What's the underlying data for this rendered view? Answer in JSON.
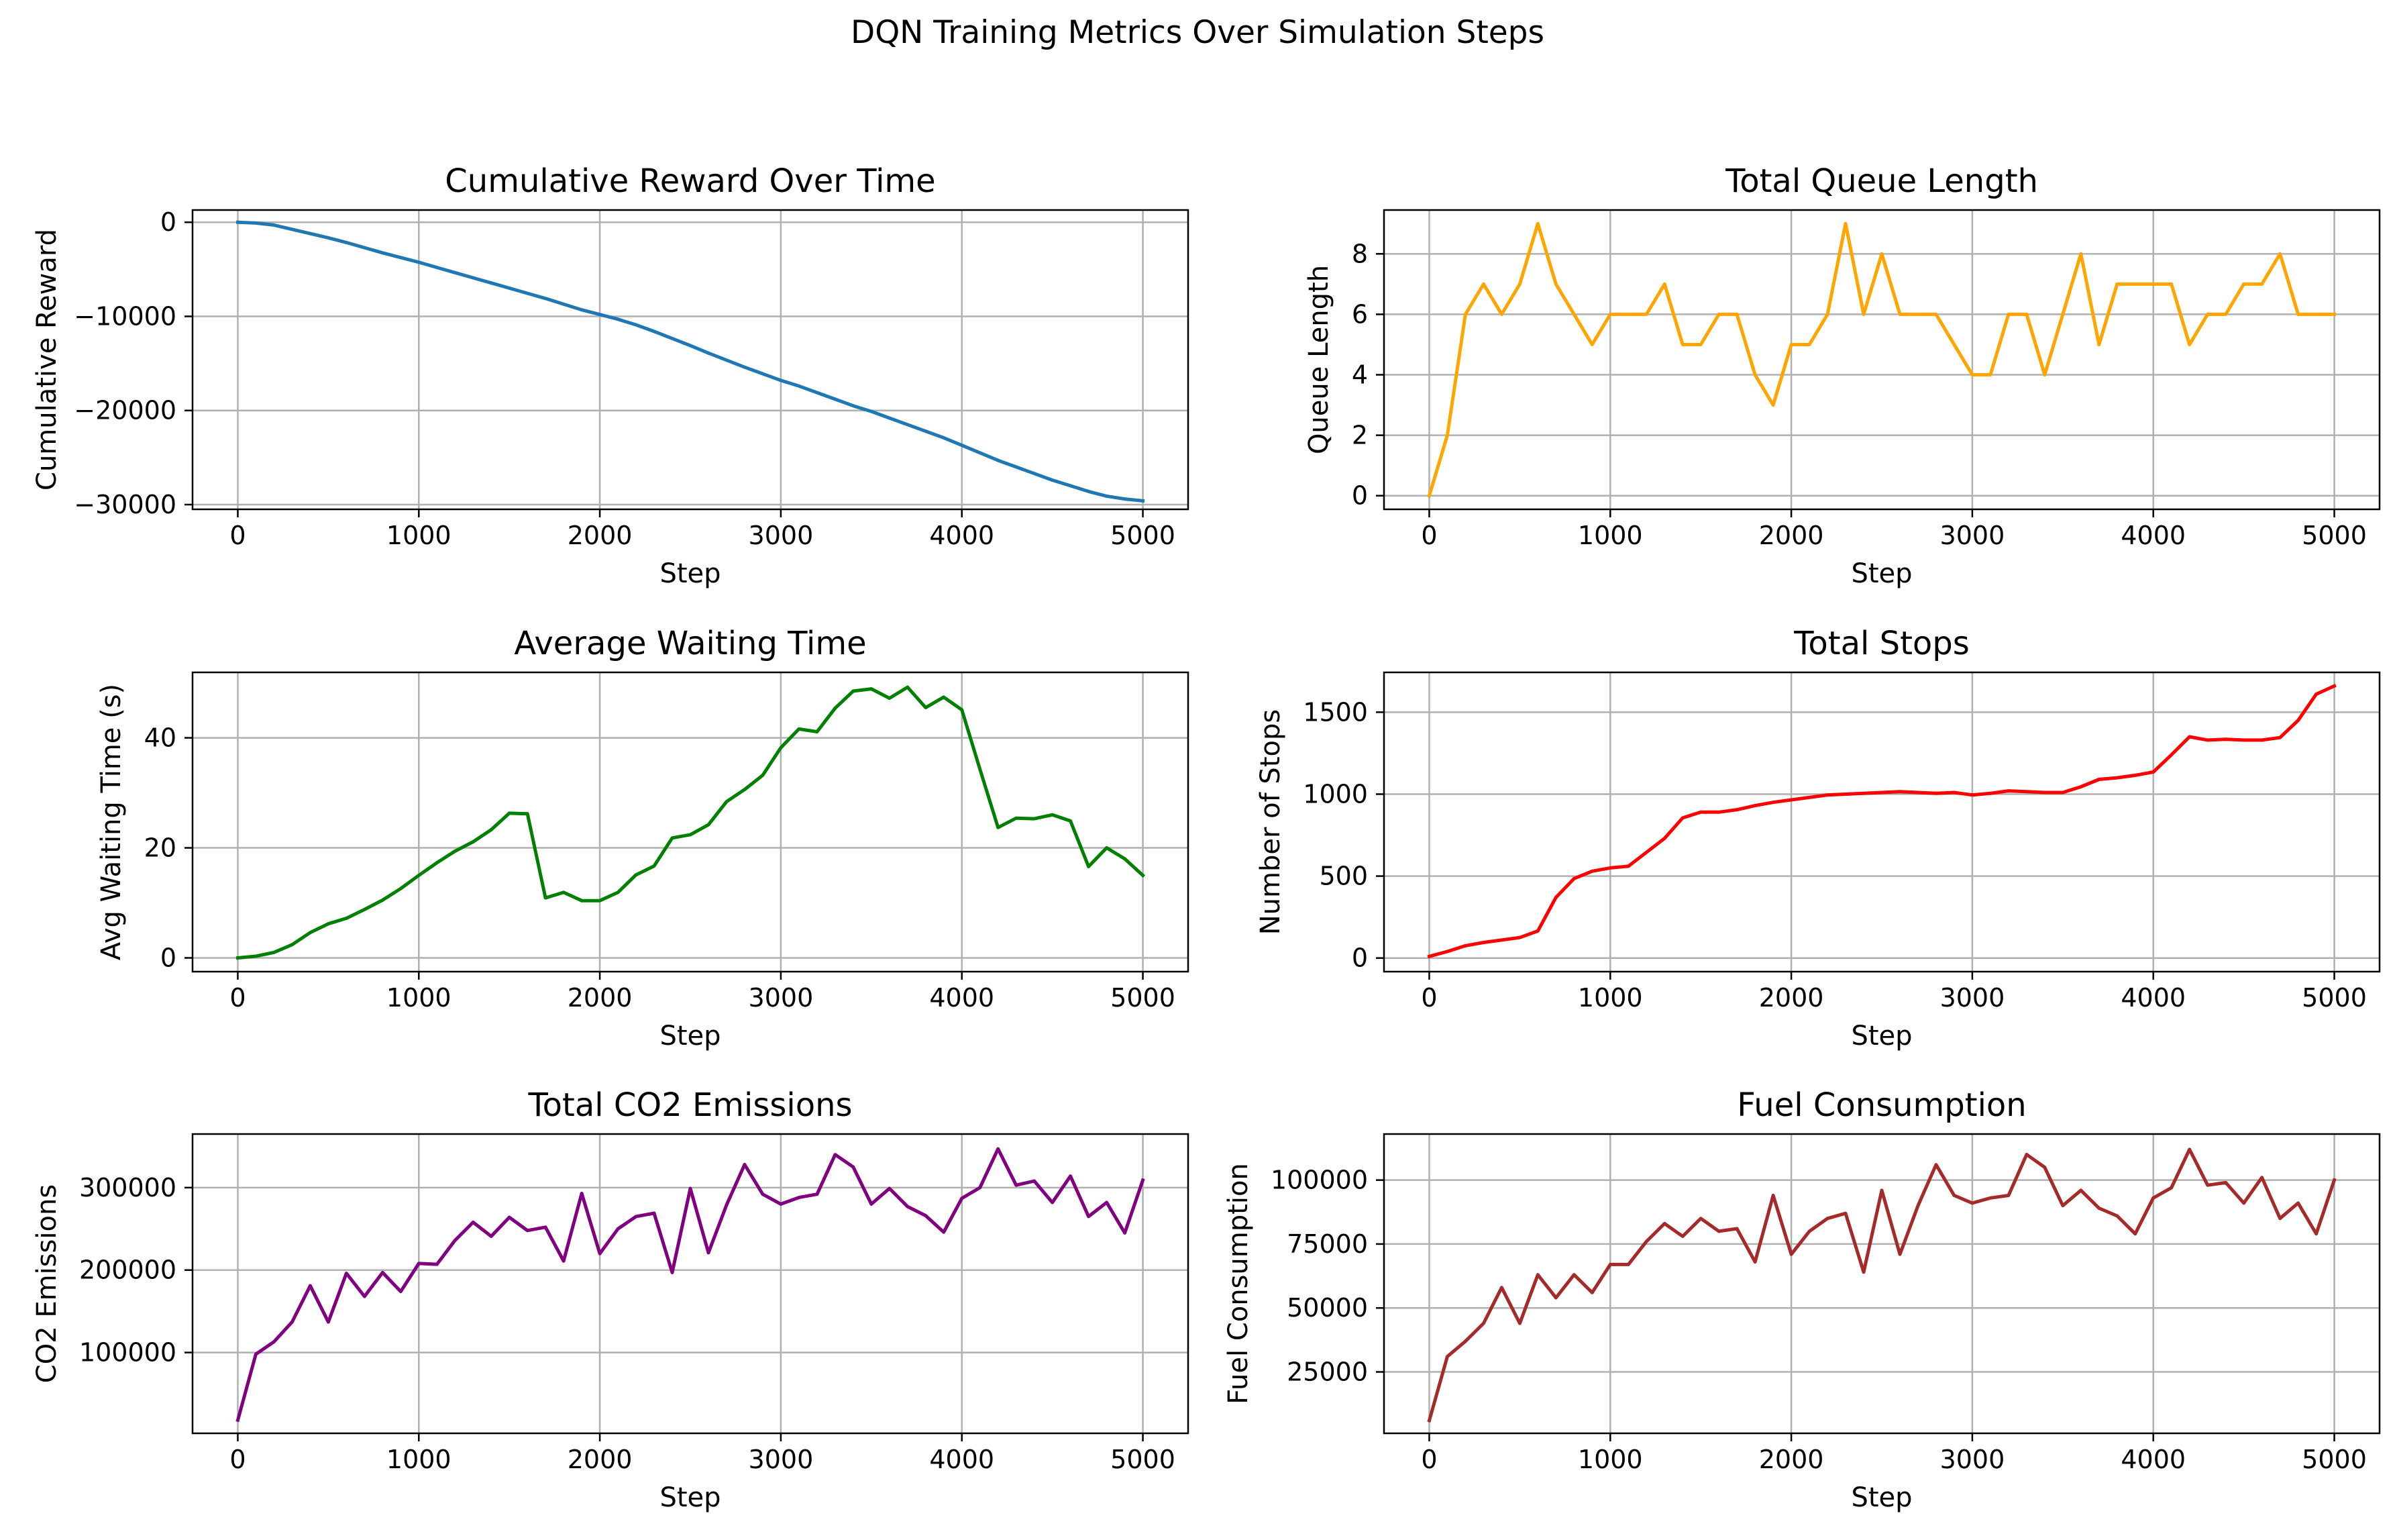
{
  "figure": {
    "suptitle": "DQN Training Metrics Over Simulation Steps"
  },
  "chart_data": [
    {
      "type": "line",
      "title": "Cumulative Reward Over Time",
      "xlabel": "Step",
      "ylabel": "Cumulative Reward",
      "color": "#1f77b4",
      "grid": true,
      "xlim": [
        -250,
        5250
      ],
      "ylim": [
        -30500,
        1300
      ],
      "xticks": [
        0,
        1000,
        2000,
        3000,
        4000,
        5000
      ],
      "yticks": [
        0,
        -10000,
        -20000,
        -30000
      ],
      "x": [
        0,
        100,
        200,
        300,
        400,
        500,
        600,
        700,
        800,
        900,
        1000,
        1100,
        1200,
        1300,
        1400,
        1500,
        1600,
        1700,
        1800,
        1900,
        2000,
        2100,
        2200,
        2300,
        2400,
        2500,
        2600,
        2700,
        2800,
        2900,
        3000,
        3100,
        3200,
        3300,
        3400,
        3500,
        3600,
        3700,
        3800,
        3900,
        4000,
        4100,
        4200,
        4300,
        4400,
        4500,
        4600,
        4700,
        4800,
        4900,
        5000
      ],
      "y": [
        0,
        -80,
        -300,
        -750,
        -1200,
        -1650,
        -2150,
        -2700,
        -3250,
        -3750,
        -4250,
        -4800,
        -5350,
        -5900,
        -6450,
        -7000,
        -7550,
        -8100,
        -8700,
        -9300,
        -9800,
        -10300,
        -10900,
        -11600,
        -12350,
        -13100,
        -13900,
        -14650,
        -15400,
        -16100,
        -16800,
        -17400,
        -18100,
        -18800,
        -19500,
        -20100,
        -20800,
        -21500,
        -22200,
        -22900,
        -23700,
        -24500,
        -25300,
        -26000,
        -26700,
        -27400,
        -28000,
        -28600,
        -29100,
        -29400,
        -29600
      ]
    },
    {
      "type": "line",
      "title": "Total Queue Length",
      "xlabel": "Step",
      "ylabel": "Queue Length",
      "color": "#ffa500",
      "grid": true,
      "xlim": [
        -250,
        5250
      ],
      "ylim": [
        -0.45,
        9.45
      ],
      "xticks": [
        0,
        1000,
        2000,
        3000,
        4000,
        5000
      ],
      "yticks": [
        0,
        2,
        4,
        6,
        8
      ],
      "x": [
        0,
        100,
        200,
        300,
        400,
        500,
        600,
        700,
        800,
        900,
        1000,
        1100,
        1200,
        1300,
        1400,
        1500,
        1600,
        1700,
        1800,
        1900,
        2000,
        2100,
        2200,
        2300,
        2400,
        2500,
        2600,
        2700,
        2800,
        2900,
        3000,
        3100,
        3200,
        3300,
        3400,
        3500,
        3600,
        3700,
        3800,
        3900,
        4000,
        4100,
        4200,
        4300,
        4400,
        4500,
        4600,
        4700,
        4800,
        4900,
        5000
      ],
      "y": [
        0,
        2,
        6,
        7,
        6,
        7,
        9,
        7,
        6,
        5,
        6,
        6,
        6,
        7,
        5,
        5,
        6,
        6,
        4,
        3,
        5,
        5,
        6,
        9,
        6,
        8,
        6,
        6,
        6,
        5,
        4,
        4,
        6,
        6,
        4,
        6,
        8,
        5,
        7,
        7,
        7,
        7,
        5,
        6,
        6,
        7,
        7,
        8,
        6,
        6,
        6
      ]
    },
    {
      "type": "line",
      "title": "Average Waiting Time",
      "xlabel": "Step",
      "ylabel": "Avg Waiting Time (s)",
      "color": "#008000",
      "grid": true,
      "xlim": [
        -250,
        5250
      ],
      "ylim": [
        -2.5,
        51.9
      ],
      "xticks": [
        0,
        1000,
        2000,
        3000,
        4000,
        5000
      ],
      "yticks": [
        0,
        20,
        40
      ],
      "x": [
        0,
        100,
        200,
        300,
        400,
        500,
        600,
        700,
        800,
        900,
        1000,
        1100,
        1200,
        1300,
        1400,
        1500,
        1600,
        1700,
        1800,
        1900,
        2000,
        2100,
        2200,
        2300,
        2400,
        2500,
        2600,
        2700,
        2800,
        2900,
        3000,
        3100,
        3200,
        3300,
        3400,
        3500,
        3600,
        3700,
        3800,
        3900,
        4000,
        4100,
        4200,
        4300,
        4400,
        4500,
        4600,
        4700,
        4800,
        4900,
        5000
      ],
      "y": [
        0,
        0.3,
        1,
        2.4,
        4.6,
        6.2,
        7.2,
        8.8,
        10.5,
        12.6,
        15,
        17.3,
        19.4,
        21.1,
        23.3,
        26.3,
        26.2,
        10.9,
        11.9,
        10.4,
        10.4,
        11.9,
        15.1,
        16.7,
        21.8,
        22.4,
        24.2,
        28.4,
        30.6,
        33.2,
        38.2,
        41.6,
        41.1,
        45.4,
        48.5,
        48.9,
        47.2,
        49.2,
        45.5,
        47.4,
        45.1,
        34.3,
        23.7,
        25.4,
        25.3,
        26,
        24.9,
        16.6,
        20,
        18,
        15
      ]
    },
    {
      "type": "line",
      "title": "Total Stops",
      "xlabel": "Step",
      "ylabel": "Number of Stops",
      "color": "#ff0000",
      "grid": true,
      "xlim": [
        -250,
        5250
      ],
      "ylim": [
        -83,
        1743
      ],
      "xticks": [
        0,
        1000,
        2000,
        3000,
        4000,
        5000
      ],
      "yticks": [
        0,
        500,
        1000,
        1500
      ],
      "x": [
        0,
        100,
        200,
        300,
        400,
        500,
        600,
        700,
        800,
        900,
        1000,
        1100,
        1200,
        1300,
        1400,
        1500,
        1600,
        1700,
        1800,
        1900,
        2000,
        2100,
        2200,
        2300,
        2400,
        2500,
        2600,
        2700,
        2800,
        2900,
        3000,
        3100,
        3200,
        3300,
        3400,
        3500,
        3600,
        3700,
        3800,
        3900,
        4000,
        4100,
        4200,
        4300,
        4400,
        4500,
        4600,
        4700,
        4800,
        4900,
        5000
      ],
      "y": [
        10,
        40,
        75,
        95,
        110,
        125,
        165,
        370,
        485,
        530,
        550,
        560,
        645,
        730,
        855,
        890,
        890,
        905,
        930,
        950,
        965,
        980,
        995,
        1000,
        1005,
        1010,
        1015,
        1010,
        1005,
        1010,
        995,
        1005,
        1020,
        1015,
        1010,
        1010,
        1045,
        1090,
        1100,
        1115,
        1135,
        1240,
        1350,
        1330,
        1335,
        1330,
        1330,
        1345,
        1450,
        1610,
        1660
      ]
    },
    {
      "type": "line",
      "title": "Total CO2 Emissions",
      "xlabel": "Step",
      "ylabel": "CO2 Emissions",
      "color": "#800080",
      "grid": true,
      "xlim": [
        -250,
        5250
      ],
      "ylim": [
        2000,
        365000
      ],
      "xticks": [
        0,
        1000,
        2000,
        3000,
        4000,
        5000
      ],
      "yticks": [
        100000,
        200000,
        300000
      ],
      "x": [
        0,
        100,
        200,
        300,
        400,
        500,
        600,
        700,
        800,
        900,
        1000,
        1100,
        1200,
        1300,
        1400,
        1500,
        1600,
        1700,
        1800,
        1900,
        2000,
        2100,
        2200,
        2300,
        2400,
        2500,
        2600,
        2700,
        2800,
        2900,
        3000,
        3100,
        3200,
        3300,
        3400,
        3500,
        3600,
        3700,
        3800,
        3900,
        4000,
        4100,
        4200,
        4300,
        4400,
        4500,
        4600,
        4700,
        4800,
        4900,
        5000
      ],
      "y": [
        18000,
        98000,
        113000,
        137000,
        181000,
        137000,
        196000,
        168000,
        197000,
        174000,
        208000,
        207000,
        236000,
        258000,
        241000,
        264000,
        248000,
        252000,
        211000,
        293000,
        220000,
        250000,
        265000,
        269000,
        197000,
        299000,
        221000,
        279000,
        328000,
        292000,
        280000,
        288000,
        292000,
        340000,
        325000,
        280000,
        299000,
        277000,
        266000,
        246000,
        287000,
        300000,
        347000,
        303000,
        308000,
        282000,
        314000,
        265000,
        282000,
        245000,
        309000
      ]
    },
    {
      "type": "line",
      "title": "Fuel Consumption",
      "xlabel": "Step",
      "ylabel": "Fuel Consumption",
      "color": "#a52a2a",
      "grid": true,
      "xlim": [
        -250,
        5250
      ],
      "ylim": [
        1000,
        118000
      ],
      "xticks": [
        0,
        1000,
        2000,
        3000,
        4000,
        5000
      ],
      "yticks": [
        25000,
        50000,
        75000,
        100000
      ],
      "x": [
        0,
        100,
        200,
        300,
        400,
        500,
        600,
        700,
        800,
        900,
        1000,
        1100,
        1200,
        1300,
        1400,
        1500,
        1600,
        1700,
        1800,
        1900,
        2000,
        2100,
        2200,
        2300,
        2400,
        2500,
        2600,
        2700,
        2800,
        2900,
        3000,
        3100,
        3200,
        3300,
        3400,
        3500,
        3600,
        3700,
        3800,
        3900,
        4000,
        4100,
        4200,
        4300,
        4400,
        4500,
        4600,
        4700,
        4800,
        4900,
        5000
      ],
      "y": [
        6000,
        31000,
        37000,
        44000,
        58000,
        44000,
        63000,
        54000,
        63000,
        56000,
        67000,
        67000,
        76000,
        83000,
        78000,
        85000,
        80000,
        81000,
        68000,
        94000,
        71000,
        80000,
        85000,
        87000,
        64000,
        96000,
        71000,
        90000,
        106000,
        94000,
        91000,
        93000,
        94000,
        110000,
        105000,
        90000,
        96000,
        89000,
        86000,
        79000,
        93000,
        97000,
        112000,
        98000,
        99000,
        91000,
        101000,
        85000,
        91000,
        79000,
        100000
      ]
    }
  ]
}
